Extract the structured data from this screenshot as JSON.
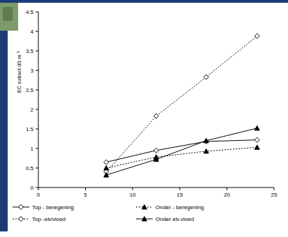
{
  "chart_data": {
    "type": "line",
    "y_label": "EC extract  dS m⁻¹",
    "x": [
      7.2,
      12.5,
      17.8,
      23.2
    ],
    "xlim": [
      0,
      25
    ],
    "xticks": [
      0,
      5,
      10,
      15,
      20,
      25
    ],
    "ylim": [
      0,
      4.5
    ],
    "yticks": [
      0,
      0.5,
      1,
      1.5,
      2,
      2.5,
      3,
      3.5,
      4,
      4.5
    ],
    "grid": false,
    "legend": "bottom",
    "series": [
      {
        "name": "Top - beregening",
        "color": "#000000",
        "marker": "diamond-open",
        "line_style": "solid",
        "values": [
          0.65,
          0.95,
          1.18,
          1.22
        ]
      },
      {
        "name": "Onder - beregening",
        "color": "#000000",
        "marker": "triangle",
        "line_style": "dotted",
        "values": [
          0.5,
          0.78,
          0.93,
          1.03
        ]
      },
      {
        "name": "Top -eb/vloed",
        "color": "#000000",
        "marker": "diamond-open",
        "line_style": "dotted",
        "values": [
          0.4,
          1.83,
          2.83,
          3.88
        ]
      },
      {
        "name": "Onder eb-vloed",
        "color": "#000000",
        "marker": "triangle",
        "line_style": "solid",
        "values": [
          0.32,
          0.72,
          1.2,
          1.52
        ]
      }
    ]
  }
}
